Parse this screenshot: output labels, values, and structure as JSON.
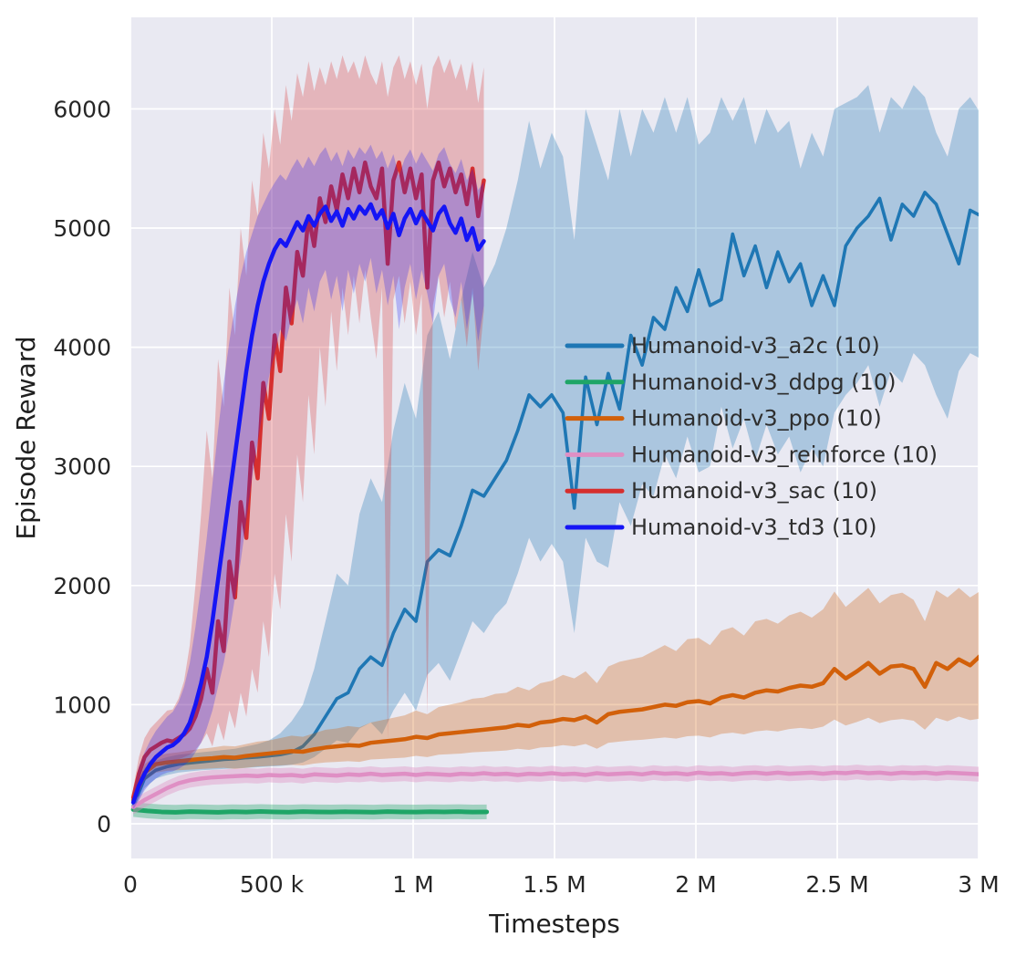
{
  "chart_data": {
    "type": "line",
    "title": "",
    "xlabel": "Timesteps",
    "ylabel": "Episode Reward",
    "grid": true,
    "legend_position": "center-right",
    "plot_bg_color": "#e9e9f2",
    "grid_color": "#ffffff",
    "text_color": "#262626",
    "xlim": [
      0,
      3.0
    ],
    "ylim": [
      -290,
      6760
    ],
    "x_ticks": [
      0,
      0.5,
      1.0,
      1.5,
      2.0,
      2.5,
      3.0
    ],
    "x_tick_labels": [
      "0",
      "500 k",
      "1 M",
      "1.5 M",
      "2 M",
      "2.5 M",
      "3 M"
    ],
    "y_ticks": [
      0,
      1000,
      2000,
      3000,
      4000,
      5000,
      6000
    ],
    "y_tick_labels": [
      "0",
      "1000",
      "2000",
      "3000",
      "4000",
      "5000",
      "6000"
    ],
    "x_units": "millions of timesteps",
    "series": [
      {
        "key": "a2c",
        "name": "Humanoid-v3_a2c (10)",
        "color": "#1f77b4",
        "band_opacity": 0.3,
        "line_width": 3.6,
        "x0": 0.01,
        "dx": 0.04,
        "mean": [
          150,
          380,
          450,
          480,
          500,
          510,
          520,
          530,
          540,
          545,
          555,
          560,
          570,
          580,
          600,
          650,
          750,
          900,
          1050,
          1100,
          1300,
          1400,
          1330,
          1600,
          1800,
          1700,
          2200,
          2300,
          2250,
          2500,
          2800,
          2750,
          2900,
          3050,
          3300,
          3600,
          3500,
          3600,
          3450,
          2650,
          3750,
          3350,
          3780,
          3480,
          4100,
          3850,
          4250,
          4150,
          4500,
          4300,
          4650,
          4350,
          4400,
          4950,
          4600,
          4850,
          4500,
          4800,
          4550,
          4700,
          4350,
          4600,
          4350,
          4850,
          5000,
          5100,
          5250,
          4900,
          5200,
          5100,
          5300,
          5200,
          4950,
          4700,
          5150,
          5100
        ],
        "lower": [
          100,
          300,
          380,
          410,
          430,
          440,
          450,
          455,
          460,
          465,
          470,
          475,
          480,
          485,
          495,
          515,
          560,
          630,
          700,
          680,
          800,
          850,
          750,
          950,
          1100,
          950,
          1250,
          1350,
          1200,
          1450,
          1700,
          1600,
          1750,
          1850,
          2100,
          2400,
          2200,
          2350,
          2200,
          1600,
          2400,
          2200,
          2150,
          2700,
          2500,
          2850,
          2750,
          3100,
          2900,
          3250,
          2950,
          3000,
          3500,
          3150,
          3400,
          3050,
          3350,
          3100,
          3250,
          2950,
          3150,
          3000,
          3450,
          3600,
          3700,
          3850,
          3500,
          3800,
          3700,
          3950,
          3850,
          3600,
          3400,
          3800,
          3950,
          3900
        ],
        "upper": [
          220,
          470,
          530,
          560,
          580,
          590,
          600,
          610,
          620,
          630,
          650,
          670,
          700,
          760,
          860,
          1000,
          1300,
          1700,
          2100,
          2000,
          2600,
          2900,
          2700,
          3300,
          3700,
          3400,
          4100,
          4300,
          3900,
          4400,
          4800,
          4500,
          4700,
          5000,
          5400,
          5900,
          5500,
          5800,
          5600,
          4900,
          6000,
          5700,
          5400,
          6000,
          5600,
          6000,
          5800,
          6100,
          5800,
          6100,
          5700,
          5800,
          6100,
          5900,
          6100,
          5700,
          6000,
          5800,
          5900,
          5500,
          5800,
          5600,
          6000,
          6050,
          6100,
          6200,
          5800,
          6100,
          6000,
          6200,
          6100,
          5800,
          5600,
          6000,
          6100,
          5950
        ]
      },
      {
        "key": "ddpg",
        "name": "Humanoid-v3_ddpg (10)",
        "color": "#1fa567",
        "band_opacity": 0.35,
        "line_width": 5,
        "x0": 0.01,
        "dx": 0.05,
        "mean": [
          120,
          108,
          100,
          97,
          102,
          100,
          97,
          101,
          99,
          103,
          100,
          98,
          102,
          100,
          99,
          101,
          100,
          98,
          102,
          100,
          99,
          101,
          100,
          102,
          99,
          100
        ],
        "band": 62
      },
      {
        "key": "ppo",
        "name": "Humanoid-v3_ppo (10)",
        "color": "#d2600a",
        "band_opacity": 0.3,
        "line_width": 4.5,
        "x0": 0.01,
        "dx": 0.04,
        "mean": [
          200,
          430,
          500,
          515,
          525,
          535,
          545,
          550,
          560,
          555,
          570,
          580,
          590,
          600,
          610,
          605,
          625,
          640,
          650,
          660,
          655,
          680,
          690,
          700,
          710,
          730,
          720,
          750,
          760,
          770,
          780,
          790,
          800,
          810,
          830,
          820,
          850,
          860,
          880,
          870,
          900,
          850,
          920,
          940,
          950,
          960,
          980,
          1000,
          990,
          1020,
          1030,
          1010,
          1060,
          1080,
          1060,
          1100,
          1120,
          1110,
          1140,
          1160,
          1150,
          1180,
          1300,
          1220,
          1280,
          1350,
          1260,
          1320,
          1330,
          1300,
          1150,
          1350,
          1300,
          1380,
          1330,
          1420
        ],
        "lower": [
          150,
          360,
          430,
          445,
          450,
          455,
          460,
          465,
          470,
          460,
          470,
          480,
          485,
          490,
          495,
          490,
          505,
          515,
          520,
          525,
          520,
          540,
          545,
          550,
          555,
          570,
          560,
          580,
          585,
          590,
          600,
          605,
          610,
          615,
          630,
          620,
          640,
          645,
          660,
          650,
          670,
          630,
          680,
          690,
          700,
          705,
          715,
          725,
          715,
          735,
          740,
          725,
          755,
          765,
          750,
          775,
          785,
          775,
          795,
          805,
          795,
          815,
          875,
          825,
          855,
          890,
          845,
          870,
          880,
          865,
          790,
          890,
          860,
          900,
          870,
          885
        ],
        "upper": [
          250,
          500,
          570,
          590,
          600,
          615,
          630,
          640,
          655,
          650,
          670,
          690,
          700,
          720,
          740,
          730,
          760,
          790,
          800,
          820,
          810,
          850,
          870,
          890,
          910,
          950,
          920,
          980,
          1000,
          1020,
          1050,
          1060,
          1090,
          1100,
          1150,
          1120,
          1180,
          1200,
          1250,
          1220,
          1280,
          1180,
          1320,
          1360,
          1380,
          1400,
          1450,
          1500,
          1450,
          1550,
          1560,
          1500,
          1620,
          1650,
          1580,
          1700,
          1720,
          1680,
          1750,
          1780,
          1730,
          1800,
          1950,
          1820,
          1900,
          1980,
          1850,
          1920,
          1940,
          1880,
          1700,
          1960,
          1900,
          1980,
          1900,
          1960
        ]
      },
      {
        "key": "reinforce",
        "name": "Humanoid-v3_reinforce (10)",
        "color": "#df8fc4",
        "band_opacity": 0.4,
        "line_width": 4.5,
        "x0": 0.01,
        "dx": 0.04,
        "mean": [
          140,
          200,
          250,
          300,
          340,
          365,
          380,
          390,
          395,
          400,
          405,
          400,
          410,
          405,
          410,
          400,
          415,
          410,
          405,
          415,
          410,
          420,
          410,
          415,
          420,
          410,
          420,
          415,
          410,
          420,
          415,
          425,
          415,
          420,
          410,
          420,
          415,
          425,
          415,
          420,
          410,
          425,
          415,
          420,
          425,
          415,
          430,
          420,
          425,
          415,
          430,
          420,
          425,
          415,
          425,
          430,
          420,
          430,
          420,
          425,
          430,
          420,
          430,
          425,
          435,
          425,
          430,
          420,
          430,
          425,
          430,
          420,
          430,
          425,
          420,
          415
        ],
        "band": 62
      },
      {
        "key": "sac",
        "name": "Humanoid-v3_sac (10)",
        "color": "#d62f2e",
        "band_opacity": 0.28,
        "line_width": 4.5,
        "x0": 0.01,
        "dx": 0.02,
        "mean": [
          220,
          420,
          560,
          620,
          650,
          680,
          700,
          690,
          720,
          750,
          800,
          900,
          1050,
          1300,
          1100,
          1700,
          1450,
          2200,
          1900,
          2700,
          2400,
          3200,
          2900,
          3700,
          3400,
          4100,
          3800,
          4500,
          4200,
          4800,
          4600,
          5100,
          4850,
          5250,
          5050,
          5350,
          5150,
          5450,
          5250,
          5500,
          5300,
          5550,
          5350,
          5250,
          5500,
          4700,
          5400,
          5550,
          5300,
          5500,
          5250,
          5450,
          4500,
          5400,
          5550,
          5350,
          5500,
          5300,
          5450,
          5200,
          5500,
          5100,
          5400
        ],
        "lower": [
          150,
          300,
          420,
          480,
          500,
          520,
          530,
          520,
          540,
          560,
          580,
          620,
          680,
          760,
          650,
          850,
          700,
          950,
          800,
          1100,
          900,
          1300,
          1100,
          1700,
          1400,
          2100,
          1800,
          2600,
          2200,
          3100,
          2700,
          3600,
          3100,
          4000,
          3500,
          4300,
          3800,
          4500,
          4100,
          4600,
          4200,
          4650,
          4250,
          3900,
          4500,
          700,
          4400,
          4600,
          4200,
          4550,
          4100,
          4450,
          900,
          4350,
          4600,
          4250,
          4550,
          4150,
          4400,
          4000,
          4500,
          3800,
          4300
        ],
        "upper": [
          300,
          560,
          720,
          800,
          850,
          900,
          950,
          960,
          1050,
          1200,
          1500,
          2000,
          2600,
          3300,
          2900,
          3900,
          3500,
          4500,
          4100,
          5000,
          4600,
          5400,
          5100,
          5800,
          5500,
          6000,
          5700,
          6200,
          5900,
          6300,
          6100,
          6400,
          6150,
          6350,
          6200,
          6400,
          6250,
          6450,
          6300,
          6400,
          6250,
          6450,
          6300,
          6200,
          6400,
          6100,
          6350,
          6450,
          6250,
          6400,
          6200,
          6380,
          6000,
          6350,
          6450,
          6300,
          6420,
          6250,
          6380,
          6150,
          6400,
          6050,
          6350
        ]
      },
      {
        "key": "td3",
        "name": "Humanoid-v3_td3 (10)",
        "color": "#1515f5",
        "band_opacity": 0.25,
        "line_width": 4.5,
        "x0": 0.01,
        "dx": 0.02,
        "mean": [
          180,
          320,
          420,
          500,
          560,
          600,
          640,
          660,
          700,
          760,
          850,
          1000,
          1180,
          1400,
          1700,
          2050,
          2400,
          2750,
          3100,
          3450,
          3800,
          4100,
          4350,
          4550,
          4700,
          4820,
          4900,
          4850,
          4950,
          5050,
          4980,
          5100,
          5020,
          5120,
          5180,
          5060,
          5140,
          5020,
          5160,
          5080,
          5180,
          5120,
          5200,
          5080,
          5150,
          5000,
          5120,
          4940,
          5080,
          5160,
          5040,
          5140,
          5060,
          4980,
          5120,
          5180,
          5040,
          4960,
          5080,
          4900,
          5000,
          4820,
          4890
        ],
        "lower": [
          120,
          200,
          280,
          340,
          380,
          410,
          430,
          440,
          460,
          490,
          530,
          600,
          680,
          800,
          950,
          1150,
          1350,
          1600,
          1900,
          2200,
          2550,
          2900,
          3200,
          3500,
          3750,
          3950,
          4150,
          4050,
          4250,
          4400,
          4200,
          4500,
          4300,
          4550,
          4650,
          4400,
          4600,
          4300,
          4650,
          4450,
          4700,
          4550,
          4750,
          4450,
          4650,
          4350,
          4600,
          4150,
          4500,
          4700,
          4400,
          4650,
          4450,
          4200,
          4600,
          4700,
          4400,
          4250,
          4550,
          4150,
          4450,
          4050,
          4350
        ],
        "upper": [
          260,
          480,
          600,
          700,
          780,
          840,
          900,
          940,
          1020,
          1150,
          1350,
          1650,
          2000,
          2400,
          2850,
          3300,
          3700,
          4050,
          4350,
          4600,
          4800,
          4950,
          5100,
          5200,
          5300,
          5380,
          5450,
          5400,
          5500,
          5580,
          5500,
          5600,
          5520,
          5620,
          5680,
          5560,
          5640,
          5520,
          5660,
          5580,
          5680,
          5620,
          5700,
          5580,
          5650,
          5500,
          5620,
          5440,
          5580,
          5660,
          5540,
          5640,
          5560,
          5480,
          5620,
          5680,
          5540,
          5460,
          5580,
          5400,
          5500,
          5320,
          5390
        ]
      }
    ]
  }
}
